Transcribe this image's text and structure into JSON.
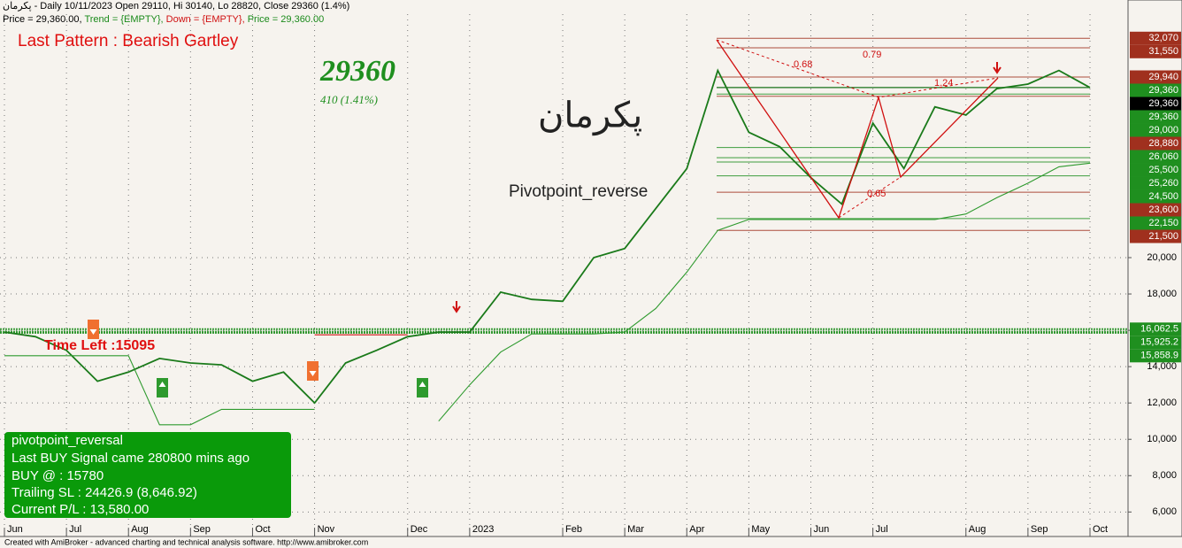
{
  "chart_data": {
    "type": "line",
    "header": "پکرمان - Daily 10/11/2023 Open 29110, Hi 30140, Lo 28820, Close 29360 (1.4%)",
    "header_parts": [
      {
        "text": "Price = 29,360.00, ",
        "color": "#000000"
      },
      {
        "text": "Trend = {EMPTY}, ",
        "color": "#1a8a1a"
      },
      {
        "text": "Down = {EMPTY}, ",
        "color": "#d01010"
      },
      {
        "text": "Price = 29,360.00",
        "color": "#1a8a1a"
      }
    ],
    "pattern_title": "Last Pattern : Bearish Gartley",
    "last_price": "29360",
    "change": "410  (1.41%)",
    "symbol": "پکرمان",
    "indicator": "Pivotpoint_reverse",
    "time_left": "Time Left :15095",
    "ratios": [
      "0.79",
      "0.68",
      "1.24",
      "0.65"
    ],
    "info_box": [
      "pivotpoint_reversal",
      "Last BUY Signal came 280800 mins ago",
      "BUY @  : 15780",
      "Trailing SL : 24426.9 (8,646.92)",
      "Current P/L : 13,580.00"
    ],
    "footer": "Created with AmiBroker - advanced charting and technical analysis software. http://www.amibroker.com",
    "categories": [
      "Jun",
      null,
      "Jul",
      null,
      "Aug",
      null,
      "Sep",
      null,
      "Oct",
      null,
      "Nov",
      null,
      null,
      "Dec",
      null,
      "2023",
      null,
      null,
      "Feb",
      null,
      "Mar",
      null,
      "Apr",
      null,
      "May",
      null,
      "Jun",
      null,
      "Jul",
      null,
      null,
      "Aug",
      null,
      "Sep",
      null,
      "Oct"
    ],
    "series": [
      {
        "color": "#1a7a1a",
        "values": [
          15900,
          15650,
          14900,
          13200,
          13700,
          14450,
          14200,
          14100,
          13200,
          13700,
          12000,
          14200,
          14900,
          15650,
          15900,
          15900,
          18100,
          17700,
          17600,
          20000,
          20500,
          22700,
          24900,
          30300,
          26900,
          26100,
          24400,
          22950,
          27400,
          24900,
          28300,
          27850,
          29300,
          29550,
          30300,
          29360
        ]
      },
      {
        "color": "#2e9a2e",
        "values": [
          14600,
          14600,
          14600,
          14600,
          14600,
          10800,
          10800,
          11650,
          11650,
          11650,
          11650,
          null,
          null,
          null,
          11000,
          13000,
          14800,
          15800,
          15800,
          15800,
          15900,
          17200,
          19200,
          21500,
          22100,
          22100,
          22100,
          22100,
          22100,
          22100,
          22100,
          22400,
          23300,
          24100,
          25000,
          25200
        ]
      },
      {
        "color": "#d01010",
        "values": [
          null,
          null,
          null,
          null,
          null,
          null,
          null,
          null,
          null,
          null,
          15750,
          15750,
          15750,
          15750,
          null,
          null,
          null,
          null,
          null,
          null,
          null,
          null,
          null,
          null,
          null,
          null,
          null,
          null,
          null,
          null,
          null,
          null,
          null,
          null,
          null,
          null
        ]
      }
    ],
    "ylim": [
      4700,
      33400
    ],
    "yticks": [
      {
        "value": 6000,
        "label": "6,000"
      },
      {
        "value": 8000,
        "label": "8,000"
      },
      {
        "value": 10000,
        "label": "10,000"
      },
      {
        "value": 12000,
        "label": "12,000"
      },
      {
        "value": 14000,
        "label": "14,000"
      },
      {
        "value": 16000,
        "label": "16,000"
      },
      {
        "value": 18000,
        "label": "18,000"
      },
      {
        "value": 20000,
        "label": "20,000"
      }
    ],
    "price_labels": [
      {
        "value": 32070,
        "label": "32,070",
        "color": "#a0301e"
      },
      {
        "value": 31550,
        "label": "31,550",
        "color": "#a0301e"
      },
      {
        "value": 29940,
        "label": "29,940",
        "color": "#a0301e"
      },
      {
        "value": 29360,
        "label": "29,360",
        "color": "#1f8f1f"
      },
      {
        "value": 29360,
        "label": "29,360",
        "color": "#000000"
      },
      {
        "value": 29360,
        "label": "29,360",
        "color": "#1f8f1f"
      },
      {
        "value": 29000,
        "label": "29,000",
        "color": "#1f8f1f"
      },
      {
        "value": 28880,
        "label": "28,880",
        "color": "#a0301e"
      },
      {
        "value": 26060,
        "label": "26,060",
        "color": "#1f8f1f"
      },
      {
        "value": 25500,
        "label": "25,500",
        "color": "#1f8f1f"
      },
      {
        "value": 25260,
        "label": "25,260",
        "color": "#1f8f1f"
      },
      {
        "value": 24500,
        "label": "24,500",
        "color": "#1f8f1f"
      },
      {
        "value": 23600,
        "label": "23,600",
        "color": "#a0301e"
      },
      {
        "value": 22150,
        "label": "22,150",
        "color": "#1f8f1f"
      },
      {
        "value": 21500,
        "label": "21,500",
        "color": "#a0301e"
      },
      {
        "value": 16062.5,
        "label": "16,062.5",
        "color": "#1f8f1f"
      },
      {
        "value": 15925.2,
        "label": "15,925.2",
        "color": "#1f8f1f"
      },
      {
        "value": 15858.9,
        "label": "15,858.9",
        "color": "#1f8f1f"
      }
    ],
    "grid": true
  }
}
